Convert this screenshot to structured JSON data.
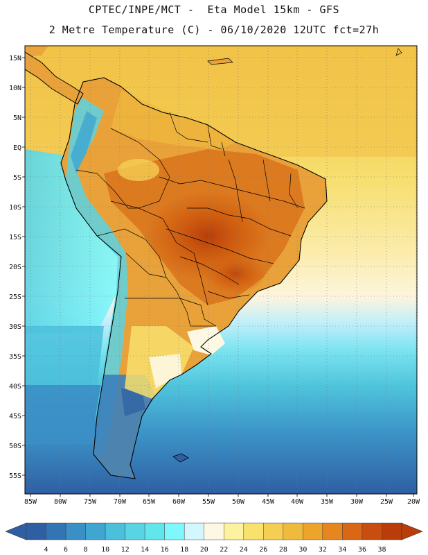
{
  "header": {
    "line1": "CPTEC/INPE/MCT -  Eta Model 15km - GFS",
    "line2": "2 Metre Temperature (C) - 06/10/2020 12UTC fct=27h"
  },
  "map": {
    "variable": "2 Metre Temperature",
    "units": "C",
    "region": "South America",
    "lat_labels": [
      "15N",
      "10N",
      "5N",
      "EQ",
      "5S",
      "10S",
      "15S",
      "20S",
      "25S",
      "30S",
      "35S",
      "40S",
      "45S",
      "50S",
      "55S"
    ],
    "lon_labels": [
      "85W",
      "80W",
      "75W",
      "70W",
      "65W",
      "60W",
      "55W",
      "50W",
      "45W",
      "40W",
      "35W",
      "30W",
      "25W",
      "20W"
    ],
    "lat_range": [
      -58,
      16.5
    ],
    "lon_range": [
      -86.5,
      -20
    ]
  },
  "legend": {
    "labels": [
      "4",
      "6",
      "8",
      "10",
      "12",
      "14",
      "16",
      "18",
      "20",
      "22",
      "24",
      "26",
      "28",
      "30",
      "32",
      "34",
      "36",
      "38"
    ],
    "colors": [
      "#2e5fa4",
      "#3275b5",
      "#3b8fc7",
      "#3fa6d2",
      "#4bc0dc",
      "#5ad3e4",
      "#62e6ee",
      "#7ef8fc",
      "#d4f6ff",
      "#fdf8e3",
      "#fdf2a0",
      "#f8e16d",
      "#f5cf52",
      "#f0bb3d",
      "#eea42b",
      "#e6861f",
      "#d96715",
      "#c94d0e",
      "#b83d0a"
    ],
    "below_arrow_color": "#2e5fa4",
    "above_arrow_color": "#b83d0a"
  }
}
